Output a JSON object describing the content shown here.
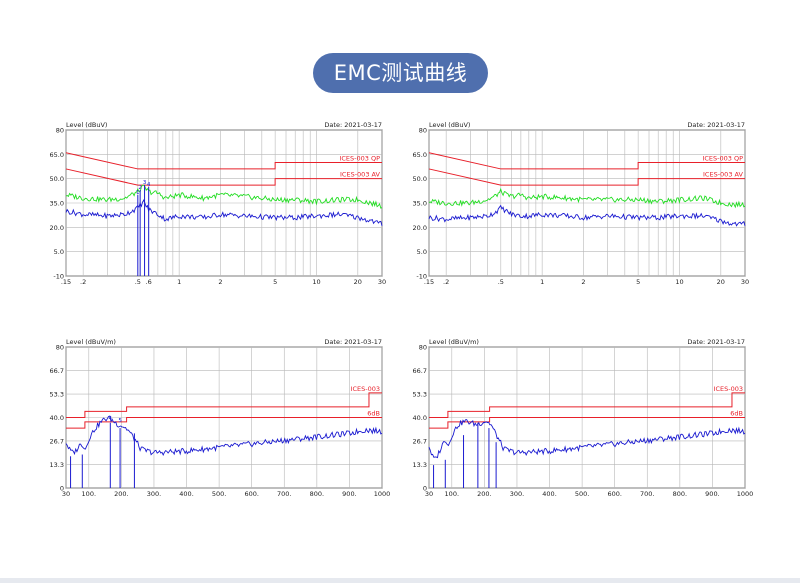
{
  "page_title": "EMC测试曲线",
  "colors": {
    "pill": "#4f6fae",
    "limit": "#e8202a",
    "qp_trace": "#22dd22",
    "av_trace": "#1a1ad0",
    "grid": "#b8b8b8",
    "frame": "#444444"
  },
  "chart_data": [
    {
      "id": "conducted-1",
      "type": "line",
      "x_scale": "log",
      "ylabel": "Level (dBuV)",
      "date_label": "Date: 2021-03-17",
      "xlim": [
        0.15,
        30
      ],
      "ylim": [
        -10,
        80
      ],
      "yticks": [
        -10,
        5.0,
        20.0,
        35.0,
        50.0,
        65.0,
        80
      ],
      "ytick_labels": [
        "-10",
        "5.0",
        "20.0",
        "35.0",
        "50.0",
        "65.0",
        "80"
      ],
      "xticks": [
        0.15,
        0.2,
        0.5,
        0.6,
        1,
        2,
        5,
        10,
        20,
        30
      ],
      "xtick_labels": [
        ".15",
        ".2",
        ".5",
        ".6",
        "1",
        "2",
        "5",
        "10",
        "20",
        "30"
      ],
      "series": [
        {
          "name": "ICES-003 QP",
          "kind": "limit",
          "x": [
            0.15,
            0.5,
            0.5,
            5,
            5,
            30
          ],
          "y": [
            66,
            56,
            56,
            56,
            60,
            60
          ]
        },
        {
          "name": "ICES-003 AV",
          "kind": "limit",
          "x": [
            0.15,
            0.5,
            0.5,
            5,
            5,
            30
          ],
          "y": [
            56,
            46,
            46,
            46,
            50,
            50
          ]
        },
        {
          "kind": "qp",
          "x": [
            0.15,
            0.2,
            0.3,
            0.4,
            0.45,
            0.5,
            0.55,
            0.6,
            0.7,
            0.8,
            1,
            1.5,
            2,
            3,
            5,
            7,
            10,
            15,
            20,
            25,
            30
          ],
          "y": [
            40,
            38,
            37,
            38,
            40,
            42,
            45,
            42,
            41,
            38,
            40,
            38,
            40,
            39,
            37,
            37,
            36,
            37,
            37,
            35,
            33
          ]
        },
        {
          "kind": "av",
          "x": [
            0.15,
            0.2,
            0.3,
            0.4,
            0.45,
            0.5,
            0.55,
            0.6,
            0.7,
            0.8,
            1,
            1.5,
            2,
            3,
            5,
            7,
            10,
            15,
            20,
            25,
            30
          ],
          "y": [
            30,
            28,
            27,
            28,
            30,
            32,
            36,
            31,
            28,
            25,
            27,
            26,
            28,
            27,
            26,
            26,
            27,
            28,
            26,
            24,
            22
          ]
        }
      ],
      "markers": [
        {
          "label": "1",
          "x": 0.5,
          "y": 40
        },
        {
          "label": "2",
          "x": 0.52,
          "y": 43
        },
        {
          "label": "3",
          "x": 0.56,
          "y": 46
        },
        {
          "label": "4",
          "x": 0.6,
          "y": 45
        }
      ]
    },
    {
      "id": "conducted-2",
      "type": "line",
      "x_scale": "log",
      "ylabel": "Level (dBuV)",
      "date_label": "Date: 2021-03-17",
      "xlim": [
        0.15,
        30
      ],
      "ylim": [
        -10,
        80
      ],
      "yticks": [
        -10,
        5.0,
        20.0,
        35.0,
        50.0,
        65.0,
        80
      ],
      "ytick_labels": [
        "-10",
        "5.0",
        "20.0",
        "35.0",
        "50.0",
        "65.0",
        "80"
      ],
      "xticks": [
        0.15,
        0.2,
        0.5,
        1,
        2,
        5,
        10,
        20,
        30
      ],
      "xtick_labels": [
        ".15",
        ".2",
        ".5",
        "1",
        "2",
        "5",
        "10",
        "20",
        "30"
      ],
      "series": [
        {
          "name": "ICES-003 QP",
          "kind": "limit",
          "x": [
            0.15,
            0.5,
            0.5,
            5,
            5,
            30
          ],
          "y": [
            66,
            56,
            56,
            56,
            60,
            60
          ]
        },
        {
          "name": "ICES-003 AV",
          "kind": "limit",
          "x": [
            0.15,
            0.5,
            0.5,
            5,
            5,
            30
          ],
          "y": [
            56,
            46,
            46,
            46,
            50,
            50
          ]
        },
        {
          "kind": "qp",
          "x": [
            0.15,
            0.2,
            0.3,
            0.4,
            0.45,
            0.5,
            0.55,
            0.6,
            0.7,
            0.8,
            1,
            1.5,
            2,
            3,
            5,
            7,
            10,
            15,
            20,
            25,
            30
          ],
          "y": [
            36,
            35,
            35,
            37,
            39,
            42,
            40,
            39,
            40,
            38,
            39,
            38,
            37,
            37,
            37,
            36,
            37,
            38,
            35,
            34,
            34
          ]
        },
        {
          "kind": "av",
          "x": [
            0.15,
            0.2,
            0.3,
            0.4,
            0.45,
            0.5,
            0.55,
            0.6,
            0.7,
            0.8,
            1,
            1.5,
            2,
            3,
            5,
            7,
            10,
            15,
            20,
            25,
            30
          ],
          "y": [
            26,
            25,
            26,
            27,
            29,
            32,
            30,
            28,
            27,
            27,
            28,
            27,
            26,
            27,
            26,
            26,
            27,
            27,
            24,
            22,
            22
          ]
        }
      ],
      "markers": []
    },
    {
      "id": "radiated-1",
      "type": "line",
      "x_scale": "linear",
      "ylabel": "Level (dBuV/m)",
      "date_label": "Date: 2021-03-17",
      "xlim": [
        30,
        1000
      ],
      "ylim": [
        0,
        80
      ],
      "yticks": [
        0,
        13.3,
        26.7,
        40.0,
        53.3,
        66.7,
        80
      ],
      "ytick_labels": [
        "0",
        "13.3",
        "26.7",
        "40.0",
        "53.3",
        "66.7",
        "80"
      ],
      "xticks": [
        30,
        100,
        200,
        300,
        400,
        500,
        600,
        700,
        800,
        900,
        1000
      ],
      "xtick_labels": [
        "30",
        "100.",
        "200.",
        "300.",
        "400.",
        "500.",
        "600.",
        "700.",
        "800.",
        "900.",
        "1000"
      ],
      "series": [
        {
          "name": "ICES-003",
          "kind": "limit",
          "x": [
            30,
            88,
            88,
            216,
            216,
            960,
            960,
            1000
          ],
          "y": [
            40,
            40,
            43.5,
            43.5,
            46,
            46,
            54,
            54
          ]
        },
        {
          "name": "6dB",
          "kind": "limit",
          "x": [
            30,
            88,
            88,
            216,
            216,
            1000
          ],
          "y": [
            34,
            34,
            37.5,
            37.5,
            40,
            40
          ]
        },
        {
          "kind": "av",
          "x": [
            30,
            40,
            50,
            60,
            70,
            80,
            90,
            100,
            120,
            140,
            160,
            175,
            190,
            205,
            220,
            240,
            260,
            300,
            400,
            500,
            600,
            700,
            800,
            900,
            950,
            1000
          ],
          "y": [
            26,
            22,
            20,
            21,
            24,
            25,
            22,
            28,
            34,
            38,
            40,
            38,
            36,
            35,
            33,
            28,
            22,
            20,
            21,
            23,
            25,
            27,
            29,
            31,
            33,
            32
          ]
        }
      ],
      "spikes": [
        {
          "x": 44,
          "y": 18
        },
        {
          "x": 80,
          "y": 19
        },
        {
          "x": 166,
          "y": 37
        },
        {
          "x": 196,
          "y": 34
        },
        {
          "x": 240,
          "y": 31
        }
      ],
      "markers": [
        {
          "label": "4",
          "x": 166,
          "y": 38
        },
        {
          "label": "5",
          "x": 196,
          "y": 37
        }
      ]
    },
    {
      "id": "radiated-2",
      "type": "line",
      "x_scale": "linear",
      "ylabel": "Level (dBuV/m)",
      "date_label": "Date: 2021-03-17",
      "xlim": [
        30,
        1000
      ],
      "ylim": [
        0,
        80
      ],
      "yticks": [
        0,
        13.3,
        26.7,
        40.0,
        53.3,
        66.7,
        80
      ],
      "ytick_labels": [
        "0",
        "13.3",
        "26.7",
        "40.0",
        "53.3",
        "66.7",
        "80"
      ],
      "xticks": [
        30,
        100,
        200,
        300,
        400,
        500,
        600,
        700,
        800,
        900,
        1000
      ],
      "xtick_labels": [
        "30",
        "100.",
        "200.",
        "300.",
        "400.",
        "500.",
        "600.",
        "700.",
        "800.",
        "900.",
        "1000"
      ],
      "series": [
        {
          "name": "ICES-003",
          "kind": "limit",
          "x": [
            30,
            88,
            88,
            216,
            216,
            960,
            960,
            1000
          ],
          "y": [
            40,
            40,
            43.5,
            43.5,
            46,
            46,
            54,
            54
          ]
        },
        {
          "name": "6dB",
          "kind": "limit",
          "x": [
            30,
            88,
            88,
            216,
            216,
            1000
          ],
          "y": [
            34,
            34,
            37.5,
            37.5,
            40,
            40
          ]
        },
        {
          "kind": "av",
          "x": [
            30,
            40,
            50,
            60,
            70,
            80,
            90,
            100,
            120,
            140,
            160,
            175,
            190,
            205,
            220,
            240,
            260,
            300,
            400,
            500,
            600,
            700,
            800,
            900,
            950,
            1000
          ],
          "y": [
            24,
            18,
            16,
            20,
            24,
            28,
            24,
            30,
            36,
            38,
            37,
            36,
            37,
            38,
            36,
            29,
            22,
            20,
            21,
            23,
            25,
            27,
            29,
            31,
            33,
            32
          ]
        }
      ],
      "spikes": [
        {
          "x": 44,
          "y": 13
        },
        {
          "x": 80,
          "y": 16
        },
        {
          "x": 136,
          "y": 30
        },
        {
          "x": 180,
          "y": 37
        },
        {
          "x": 214,
          "y": 34
        },
        {
          "x": 236,
          "y": 26
        }
      ],
      "markers": []
    }
  ]
}
